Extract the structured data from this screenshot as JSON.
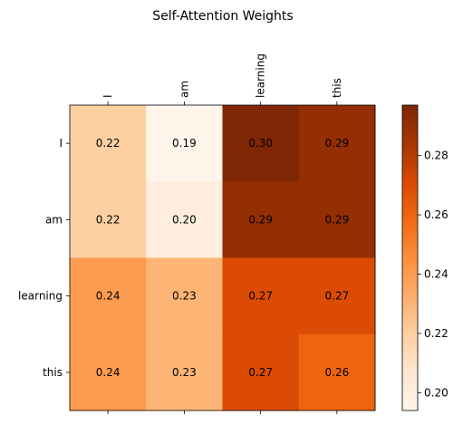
{
  "chart_data": {
    "type": "heatmap",
    "title": "Self-Attention Weights",
    "x_labels": [
      "I",
      "am",
      "learning",
      "this"
    ],
    "y_labels": [
      "I",
      "am",
      "learning",
      "this"
    ],
    "values": [
      [
        0.22,
        0.19,
        0.3,
        0.29
      ],
      [
        0.22,
        0.2,
        0.29,
        0.29
      ],
      [
        0.24,
        0.23,
        0.27,
        0.27
      ],
      [
        0.24,
        0.23,
        0.27,
        0.26
      ]
    ],
    "colormap": "Oranges",
    "color_range": [
      0.194,
      0.297
    ],
    "colorbar": {
      "ticks": [
        0.2,
        0.22,
        0.24,
        0.26,
        0.28
      ],
      "tick_labels": [
        "0.20",
        "0.22",
        "0.24",
        "0.26",
        "0.28"
      ],
      "position": "right"
    },
    "x_tick_position": "top"
  }
}
